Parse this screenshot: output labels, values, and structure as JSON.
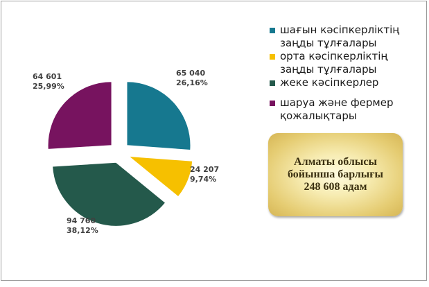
{
  "chart_data": {
    "type": "pie",
    "title": "",
    "categories": [
      "шағын кәсіпкерліктің заңды тұлғалары",
      "орта кәсіпкерліктің заңды тұлғалары",
      "жеке кәсіпкерлер",
      "шаруа және фермер қожалықтары"
    ],
    "values": [
      65040,
      24207,
      94760,
      64601
    ],
    "percent_labels": [
      "26,16%",
      "9,74%",
      "38,12%",
      "25,99%"
    ],
    "value_labels": [
      "65 040",
      "24 207",
      "94 760",
      "64 601"
    ],
    "colors": [
      "#16788f",
      "#f6c000",
      "#24594b",
      "#77135f"
    ],
    "exploded": true,
    "legend_position": "right"
  },
  "legend": {
    "items": [
      {
        "label": "шағын кәсіпкерліктің заңды тұлғалары",
        "color": "#16788f"
      },
      {
        "label": "орта кәсіпкерліктің заңды тұлғалары",
        "color": "#f6c000"
      },
      {
        "label": "жеке кәсіпкерлер",
        "color": "#24594b"
      },
      {
        "label": "шаруа және фермер қожалықтары",
        "color": "#77135f"
      }
    ]
  },
  "summary": {
    "line1": "Алматы облысы",
    "line2": "бойынша барлығы",
    "line3": "248 608 адам"
  }
}
